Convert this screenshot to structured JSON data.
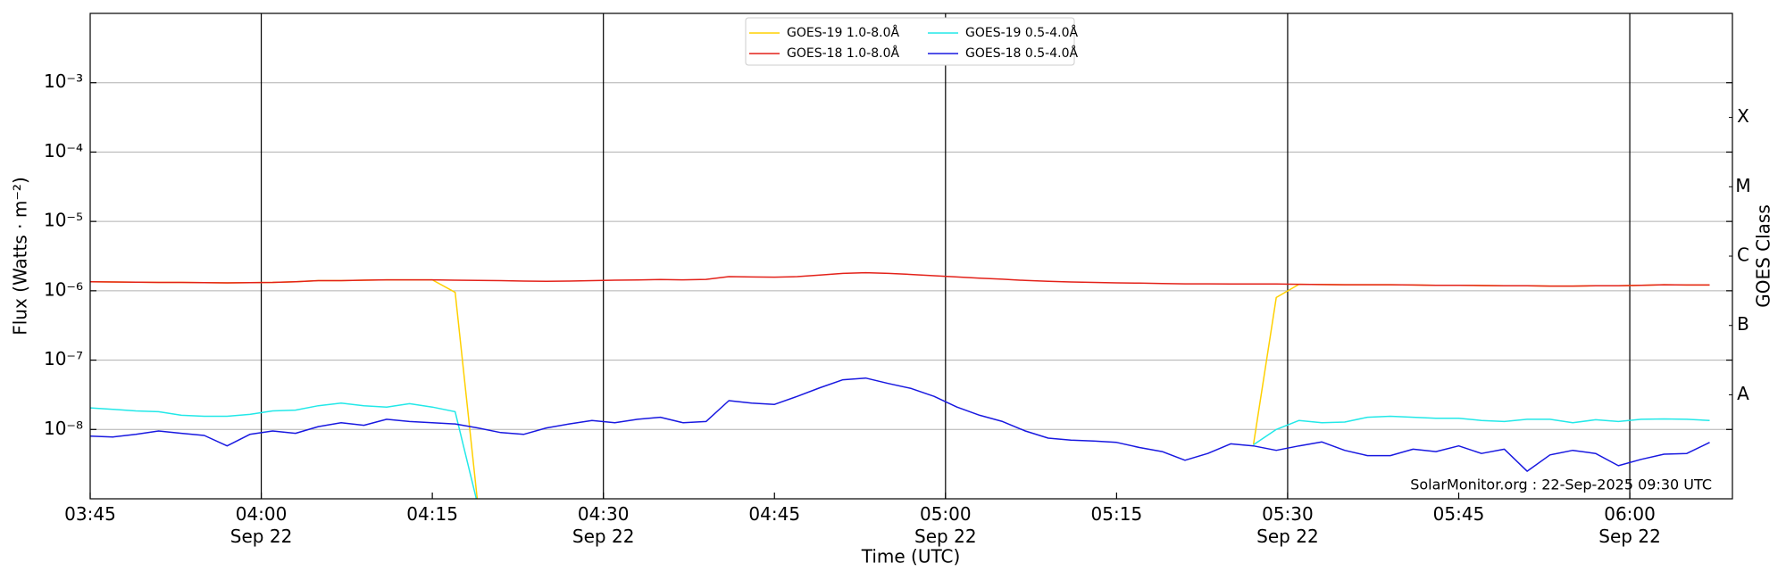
{
  "chart_data": {
    "type": "line",
    "ylabel": "Flux (Watts · m⁻²)",
    "xlabel": "Time (UTC)",
    "y2label": "GOES Class",
    "annotation": "SolarMonitor.org : 22-Sep-2025 09:30 UTC",
    "yscale": "log",
    "legend": "upper center",
    "grid": true,
    "xlim": [
      "03:45",
      "06:09"
    ],
    "xticks": [
      "03:45",
      {
        "value": "04:00",
        "label": "04:00\nSep 22"
      },
      {
        "value": "04:15",
        "label": "04:15"
      },
      {
        "value": "04:30",
        "label": "04:30\nSep 22"
      },
      {
        "value": "04:45",
        "label": "04:45"
      },
      {
        "value": "05:00",
        "label": "05:00\nSep 22"
      },
      {
        "value": "05:15",
        "label": "05:15"
      },
      {
        "value": "05:30",
        "label": "05:30\nSep 22"
      },
      {
        "value": "05:45",
        "label": "05:45"
      },
      {
        "value": "06:00",
        "label": "06:00\nSep 22"
      }
    ],
    "vlines": [
      "04:00",
      "04:30",
      "05:00",
      "05:30",
      "06:00"
    ],
    "ylim": [
      1e-09,
      0.01
    ],
    "yticks": [
      {
        "value": 1e-08,
        "label": "10⁻⁸"
      },
      {
        "value": 1e-07,
        "label": "10⁻⁷"
      },
      {
        "value": 1e-06,
        "label": "10⁻⁶"
      },
      {
        "value": 1e-05,
        "label": "10⁻⁵"
      },
      {
        "value": 0.0001,
        "label": "10⁻⁴"
      },
      {
        "value": 0.001,
        "label": "10⁻³"
      }
    ],
    "y2lim": [
      1e-09,
      0.01
    ],
    "y2ticks": [
      {
        "value": 3.16e-08,
        "label": "A"
      },
      {
        "value": 3.16e-07,
        "label": "B"
      },
      {
        "value": 3.16e-06,
        "label": "C"
      },
      {
        "value": 3.16e-05,
        "label": "M"
      },
      {
        "value": 0.000316,
        "label": "X"
      }
    ],
    "x": [
      "03:45",
      "03:47",
      "03:49",
      "03:51",
      "03:53",
      "03:55",
      "03:57",
      "03:59",
      "04:01",
      "04:03",
      "04:05",
      "04:07",
      "04:09",
      "04:11",
      "04:13",
      "04:15",
      "04:17",
      "04:19",
      "04:21",
      "04:23",
      "04:25",
      "04:27",
      "04:29",
      "04:31",
      "04:33",
      "04:35",
      "04:37",
      "04:39",
      "04:41",
      "04:43",
      "04:45",
      "04:47",
      "04:49",
      "04:51",
      "04:53",
      "04:55",
      "04:57",
      "04:59",
      "05:01",
      "05:03",
      "05:05",
      "05:07",
      "05:09",
      "05:11",
      "05:13",
      "05:15",
      "05:17",
      "05:19",
      "05:21",
      "05:23",
      "05:25",
      "05:27",
      "05:29",
      "05:31",
      "05:33",
      "05:35",
      "05:37",
      "05:39",
      "05:41",
      "05:43",
      "05:45",
      "05:47",
      "05:49",
      "05:51",
      "05:53",
      "05:55",
      "05:57",
      "05:59",
      "06:01",
      "06:03",
      "06:05",
      "06:07"
    ],
    "series": [
      {
        "name": "GOES-19 1.0-8.0Å",
        "color": "#ffd000",
        "values": [
          1.35e-06,
          1.34e-06,
          1.33e-06,
          1.32e-06,
          1.32e-06,
          1.31e-06,
          1.3e-06,
          1.31e-06,
          1.32e-06,
          1.35e-06,
          1.4e-06,
          1.4e-06,
          1.42e-06,
          1.44e-06,
          1.44e-06,
          1.44e-06,
          9.5e-07,
          8e-10,
          null,
          null,
          null,
          null,
          null,
          null,
          null,
          null,
          null,
          null,
          null,
          null,
          null,
          null,
          null,
          null,
          null,
          null,
          null,
          null,
          null,
          null,
          null,
          null,
          null,
          null,
          null,
          null,
          null,
          null,
          null,
          null,
          null,
          6e-09,
          8e-07,
          1.24e-06,
          1.23e-06,
          1.22e-06,
          1.22e-06,
          1.22e-06,
          1.21e-06,
          1.2e-06,
          1.2e-06,
          1.19e-06,
          1.18e-06,
          1.18e-06,
          1.17e-06,
          1.17e-06,
          1.18e-06,
          1.18e-06,
          1.2e-06,
          1.22e-06,
          1.21e-06,
          1.21e-06
        ]
      },
      {
        "name": "GOES-18 1.0-8.0Å",
        "color": "#e32119",
        "values": [
          1.35e-06,
          1.34e-06,
          1.33e-06,
          1.32e-06,
          1.32e-06,
          1.31e-06,
          1.3e-06,
          1.31e-06,
          1.32e-06,
          1.35e-06,
          1.4e-06,
          1.4e-06,
          1.42e-06,
          1.44e-06,
          1.44e-06,
          1.44e-06,
          1.42e-06,
          1.41e-06,
          1.4e-06,
          1.38e-06,
          1.37e-06,
          1.38e-06,
          1.4e-06,
          1.42e-06,
          1.43e-06,
          1.45e-06,
          1.44e-06,
          1.46e-06,
          1.6e-06,
          1.58e-06,
          1.57e-06,
          1.6e-06,
          1.68e-06,
          1.78e-06,
          1.82e-06,
          1.78e-06,
          1.72e-06,
          1.65e-06,
          1.58e-06,
          1.52e-06,
          1.47e-06,
          1.41e-06,
          1.37e-06,
          1.34e-06,
          1.32e-06,
          1.3e-06,
          1.29e-06,
          1.27e-06,
          1.26e-06,
          1.26e-06,
          1.25e-06,
          1.25e-06,
          1.25e-06,
          1.24e-06,
          1.23e-06,
          1.22e-06,
          1.22e-06,
          1.22e-06,
          1.21e-06,
          1.2e-06,
          1.2e-06,
          1.19e-06,
          1.18e-06,
          1.18e-06,
          1.17e-06,
          1.17e-06,
          1.18e-06,
          1.18e-06,
          1.2e-06,
          1.22e-06,
          1.21e-06,
          1.21e-06
        ]
      },
      {
        "name": "GOES-19 0.5-4.0Å",
        "color": "#22e8e8",
        "values": [
          2.05e-08,
          1.95e-08,
          1.85e-08,
          1.8e-08,
          1.6e-08,
          1.55e-08,
          1.55e-08,
          1.65e-08,
          1.85e-08,
          1.9e-08,
          2.2e-08,
          2.4e-08,
          2.2e-08,
          2.1e-08,
          2.35e-08,
          2.1e-08,
          1.8e-08,
          8e-10,
          null,
          null,
          null,
          null,
          null,
          null,
          null,
          null,
          null,
          null,
          null,
          null,
          null,
          null,
          null,
          null,
          null,
          null,
          null,
          null,
          null,
          null,
          null,
          null,
          null,
          null,
          null,
          null,
          null,
          null,
          null,
          null,
          null,
          6e-09,
          1e-08,
          1.35e-08,
          1.25e-08,
          1.28e-08,
          1.5e-08,
          1.55e-08,
          1.5e-08,
          1.45e-08,
          1.45e-08,
          1.35e-08,
          1.3e-08,
          1.4e-08,
          1.4e-08,
          1.25e-08,
          1.38e-08,
          1.3e-08,
          1.4e-08,
          1.42e-08,
          1.4e-08,
          1.35e-08
        ]
      },
      {
        "name": "GOES-18 0.5-4.0Å",
        "color": "#1818e0",
        "values": [
          8e-09,
          7.8e-09,
          8.5e-09,
          9.5e-09,
          8.8e-09,
          8.2e-09,
          5.8e-09,
          8.5e-09,
          9.5e-09,
          8.8e-09,
          1.1e-08,
          1.25e-08,
          1.15e-08,
          1.4e-08,
          1.3e-08,
          1.25e-08,
          1.2e-08,
          1.05e-08,
          9e-09,
          8.5e-09,
          1.05e-08,
          1.2e-08,
          1.35e-08,
          1.25e-08,
          1.4e-08,
          1.5e-08,
          1.25e-08,
          1.3e-08,
          2.6e-08,
          2.4e-08,
          2.3e-08,
          3e-08,
          4e-08,
          5.2e-08,
          5.5e-08,
          4.6e-08,
          3.9e-08,
          3e-08,
          2.1e-08,
          1.6e-08,
          1.3e-08,
          9.5e-09,
          7.5e-09,
          7e-09,
          6.8e-09,
          6.5e-09,
          5.5e-09,
          4.8e-09,
          3.6e-09,
          4.5e-09,
          6.2e-09,
          5.8e-09,
          5e-09,
          5.8e-09,
          6.6e-09,
          5e-09,
          4.2e-09,
          4.2e-09,
          5.2e-09,
          4.8e-09,
          5.8e-09,
          4.5e-09,
          5.2e-09,
          2.5e-09,
          4.3e-09,
          5e-09,
          4.5e-09,
          3e-09,
          3.7e-09,
          4.4e-09,
          4.5e-09,
          6.5e-09
        ]
      }
    ]
  }
}
